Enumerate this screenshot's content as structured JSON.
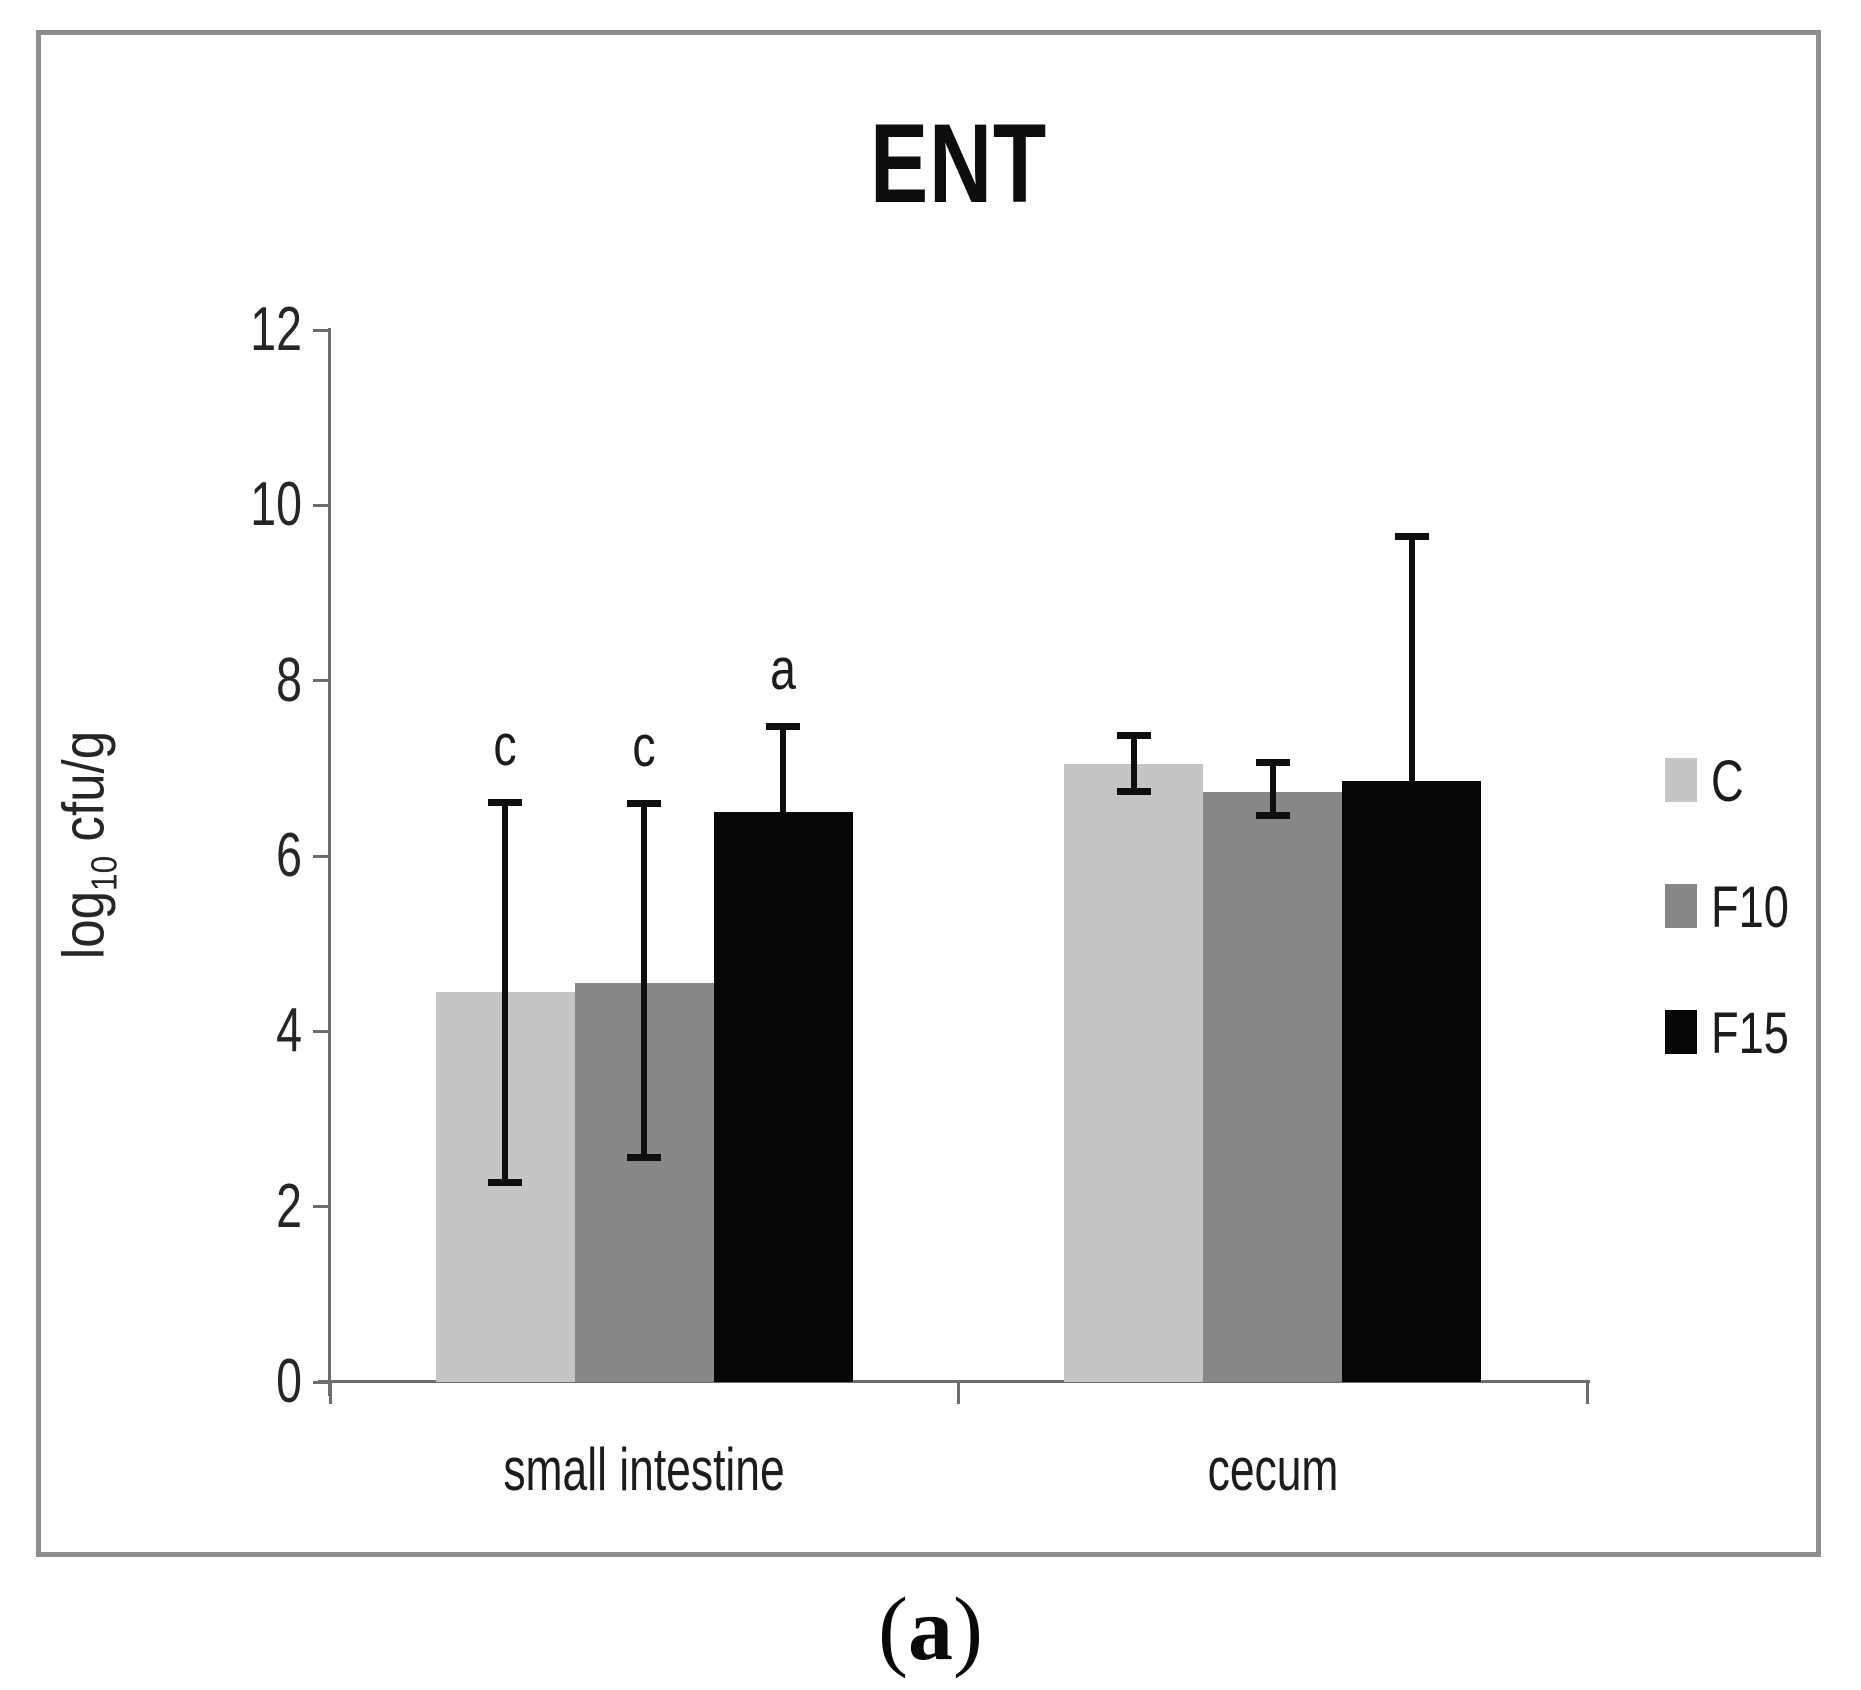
{
  "figure": {
    "caption_open": "(",
    "caption_letter": "a",
    "caption_close": ")"
  },
  "chart_data": {
    "type": "bar",
    "title": "ENT",
    "ylabel": "log10 cfu/g",
    "ylabel_pre": "log",
    "ylabel_sub": "10",
    "ylabel_post": " cfu/g",
    "xlabel": "",
    "categories": [
      "small intestine",
      "cecum"
    ],
    "series": [
      {
        "name": "C",
        "color": "#c5c5c5",
        "values": [
          4.45,
          7.05
        ],
        "err_low": [
          2.27,
          6.73
        ],
        "err_high": [
          6.62,
          7.38
        ],
        "sig_letters": [
          "c",
          null
        ]
      },
      {
        "name": "F10",
        "color": "#878787",
        "values": [
          4.55,
          6.73
        ],
        "err_low": [
          2.55,
          6.46
        ],
        "err_high": [
          6.6,
          7.07
        ],
        "sig_letters": [
          "c",
          null
        ]
      },
      {
        "name": "F15",
        "color": "#060606",
        "values": [
          6.5,
          6.85
        ],
        "err_low": [
          null,
          null
        ],
        "err_high": [
          7.48,
          9.65
        ],
        "sig_letters": [
          "a",
          null
        ]
      }
    ],
    "ylim": [
      0,
      12
    ],
    "yticks": [
      0,
      2,
      4,
      6,
      8,
      10,
      12
    ],
    "grid": false,
    "error_bars": true,
    "legend_position": "right",
    "axis_color": "#6e6e6e"
  }
}
